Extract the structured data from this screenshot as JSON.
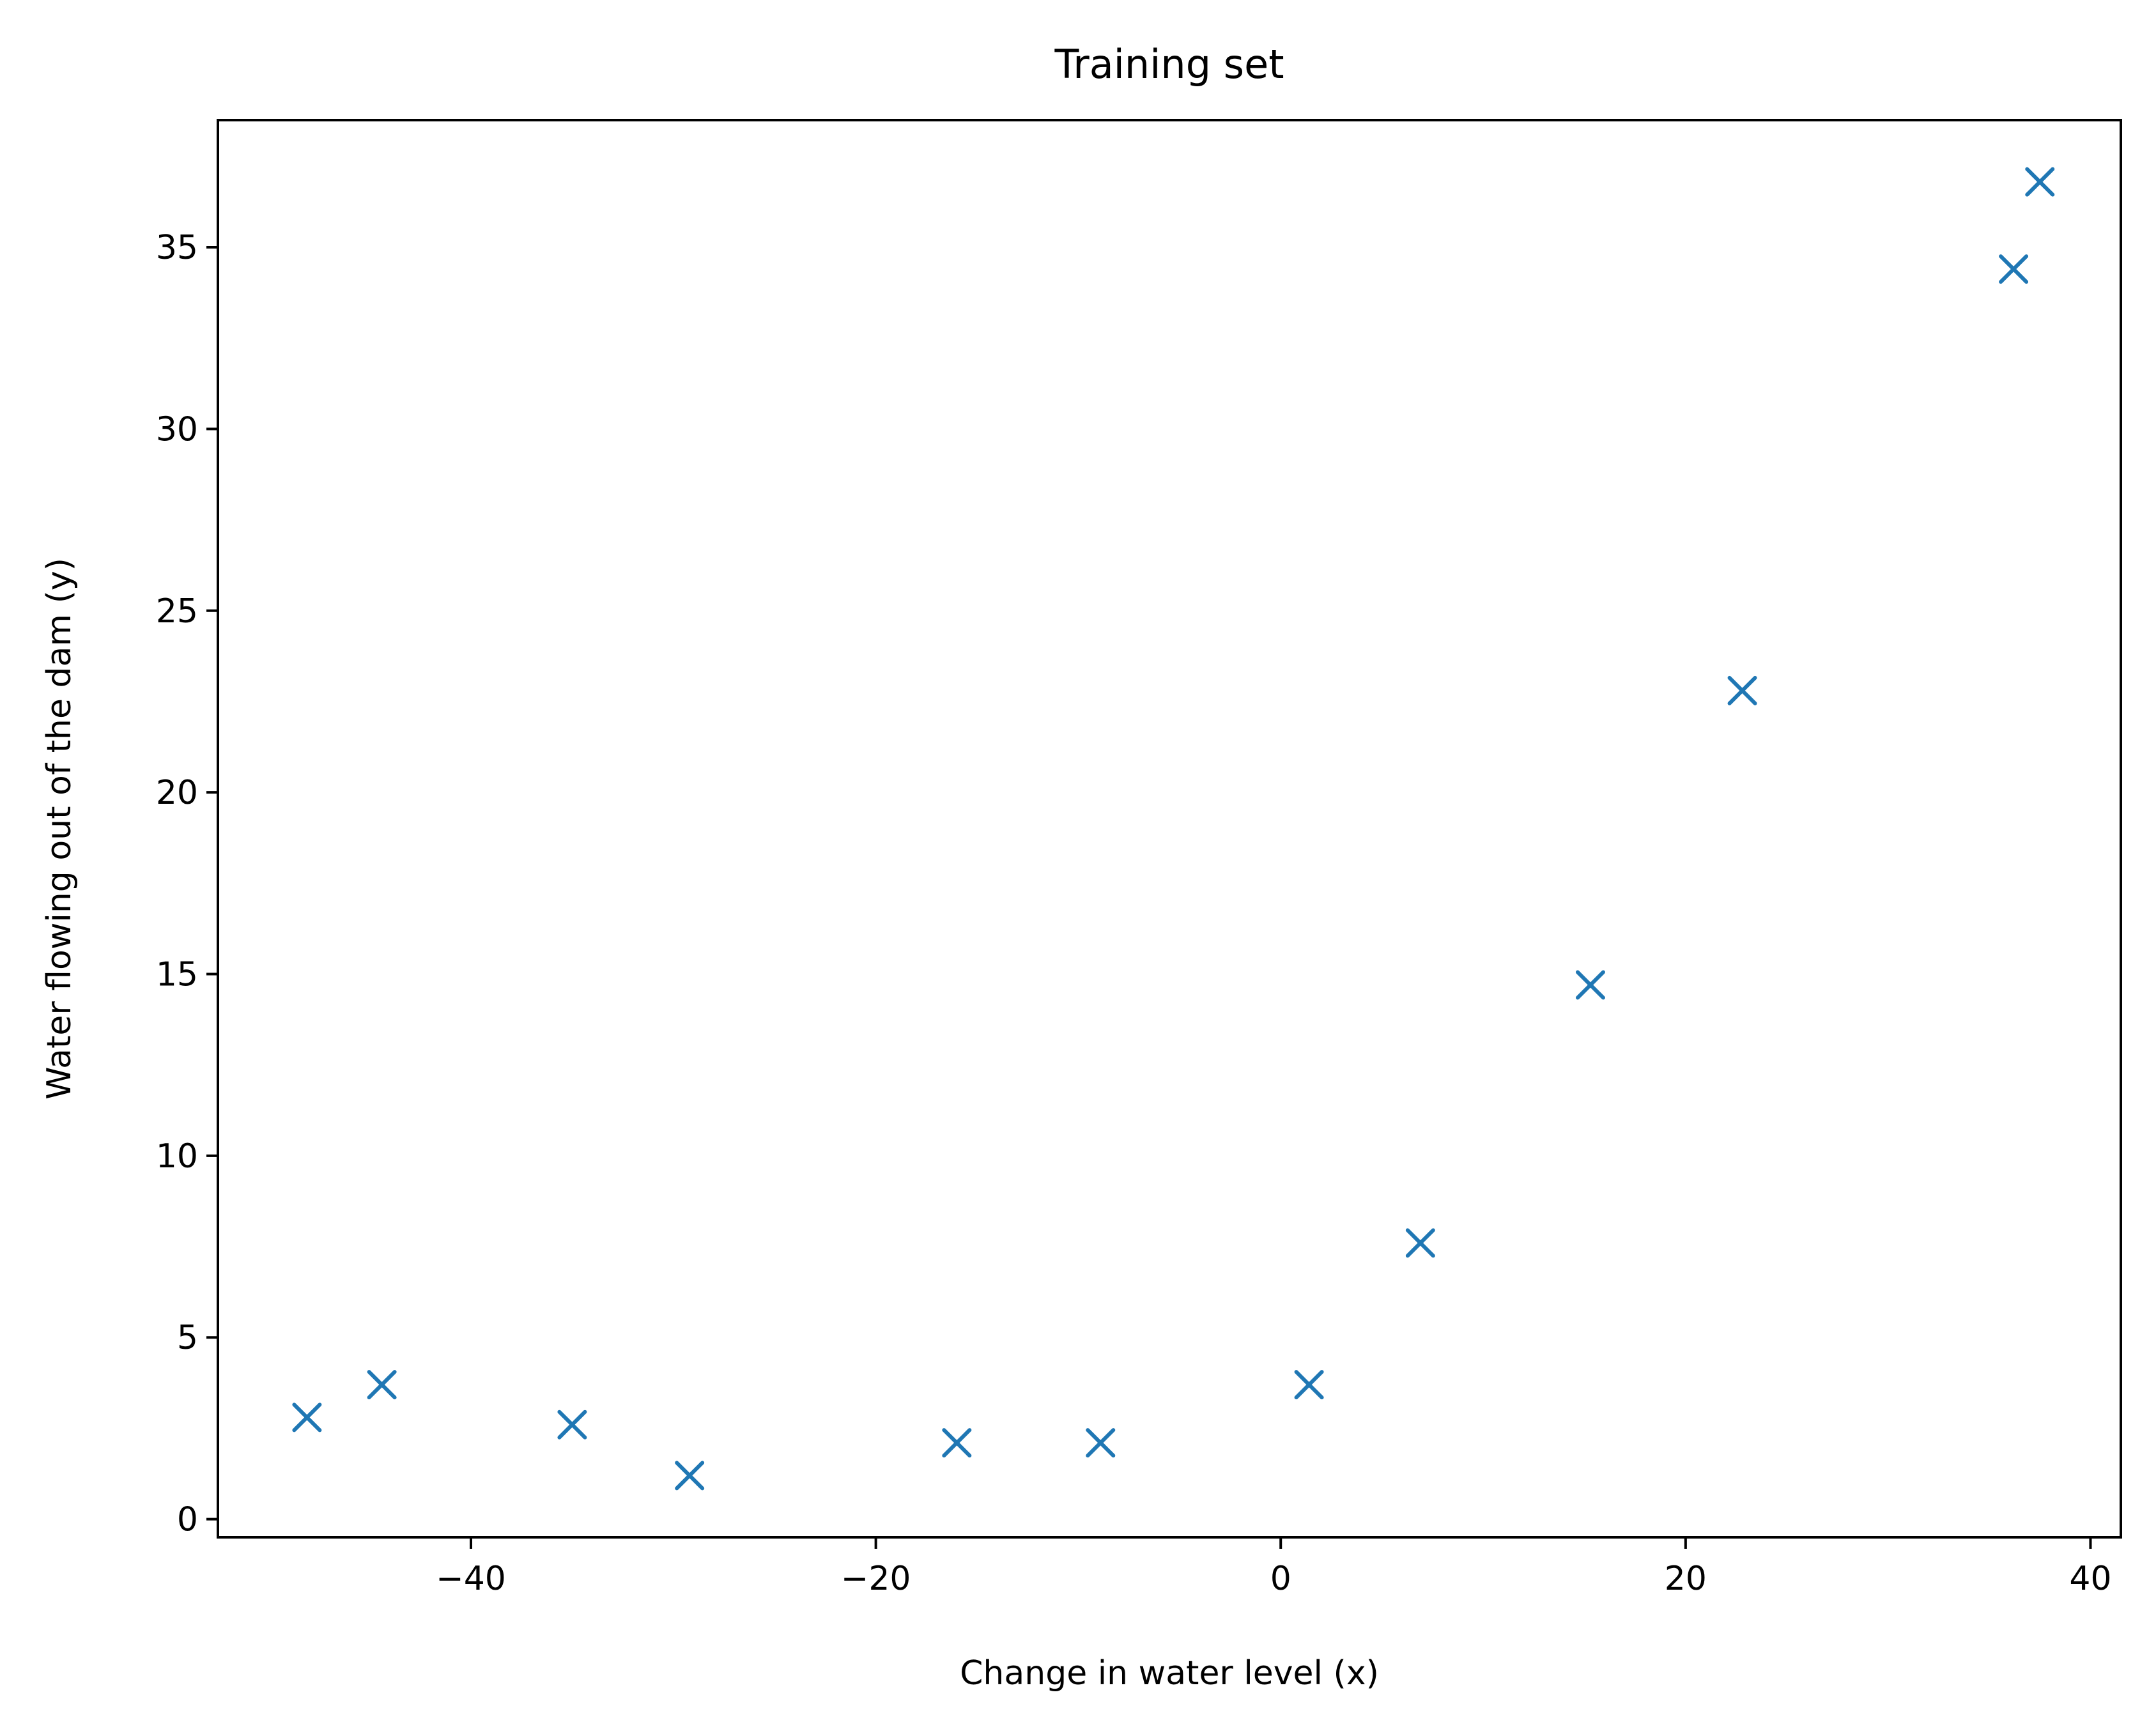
{
  "chart_data": {
    "type": "scatter",
    "title": "Training set",
    "xlabel": "Change in water level (x)",
    "ylabel": "Water flowing out of the dam (y)",
    "xlim": [
      -52.5,
      41.5
    ],
    "ylim": [
      -0.5,
      38.5
    ],
    "xticks": [
      -40,
      -20,
      0,
      20,
      40
    ],
    "yticks": [
      0,
      5,
      10,
      15,
      20,
      25,
      30,
      35
    ],
    "xtick_labels": [
      "−40",
      "−20",
      "0",
      "20",
      "40"
    ],
    "ytick_labels": [
      "0",
      "5",
      "10",
      "15",
      "20",
      "25",
      "30",
      "35"
    ],
    "grid": false,
    "marker": "x",
    "color": "#1f77b4",
    "points": [
      {
        "x": -48.1,
        "y": 2.8
      },
      {
        "x": -44.4,
        "y": 3.7
      },
      {
        "x": -35.0,
        "y": 2.6
      },
      {
        "x": -29.2,
        "y": 1.2
      },
      {
        "x": -16.0,
        "y": 2.1
      },
      {
        "x": -8.9,
        "y": 2.1
      },
      {
        "x": 1.4,
        "y": 3.7
      },
      {
        "x": 6.9,
        "y": 7.6
      },
      {
        "x": 15.3,
        "y": 14.7
      },
      {
        "x": 22.8,
        "y": 22.8
      },
      {
        "x": 36.2,
        "y": 34.4
      },
      {
        "x": 37.5,
        "y": 36.8
      }
    ]
  }
}
